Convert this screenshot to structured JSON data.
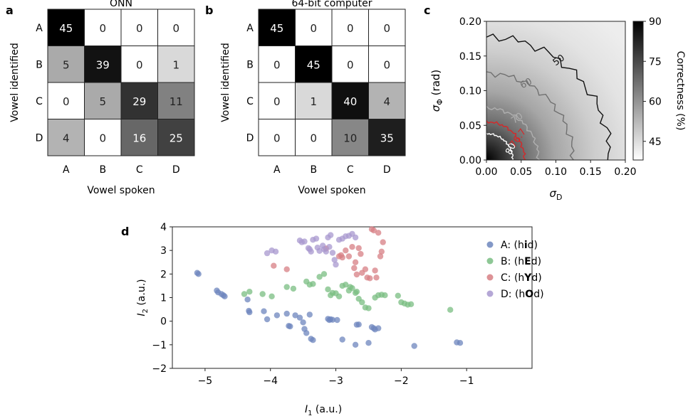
{
  "panels": {
    "a": "a",
    "b": "b",
    "c": "c",
    "d": "d"
  },
  "chart_data": [
    {
      "panel": "a",
      "type": "heatmap",
      "title": "ONN",
      "xlabel": "Vowel spoken",
      "ylabel": "Vowel identified",
      "x_categories": [
        "A",
        "B",
        "C",
        "D"
      ],
      "y_categories": [
        "A",
        "B",
        "C",
        "D"
      ],
      "max": 45,
      "values": [
        [
          45,
          0,
          0,
          0
        ],
        [
          5,
          39,
          0,
          1
        ],
        [
          0,
          5,
          29,
          11
        ],
        [
          4,
          0,
          16,
          25
        ]
      ]
    },
    {
      "panel": "b",
      "type": "heatmap",
      "title": "64-bit computer",
      "xlabel": "Vowel spoken",
      "ylabel": "Vowel identified",
      "x_categories": [
        "A",
        "B",
        "C",
        "D"
      ],
      "y_categories": [
        "A",
        "B",
        "C",
        "D"
      ],
      "max": 45,
      "values": [
        [
          45,
          0,
          0,
          0
        ],
        [
          0,
          45,
          0,
          0
        ],
        [
          0,
          1,
          40,
          4
        ],
        [
          0,
          0,
          10,
          35
        ]
      ]
    },
    {
      "panel": "c",
      "type": "heatmap",
      "xlabel": "σ_D",
      "ylabel": "σ_Φ (rad)",
      "xlim": [
        0,
        0.2
      ],
      "ylim": [
        0,
        0.2
      ],
      "xticks": [
        "0.00",
        "0.05",
        "0.10",
        "0.15",
        "0.20"
      ],
      "yticks": [
        "0.00",
        "0.05",
        "0.10",
        "0.15",
        "0.20"
      ],
      "colorbar": {
        "label": "Correctness (%)",
        "range": [
          38,
          90
        ],
        "ticks": [
          "45",
          "60",
          "75",
          "90"
        ]
      },
      "contours": [
        {
          "level": "80",
          "color": "#ffffff",
          "radius": 0.038
        },
        {
          "level": "76.7",
          "color": "#d62728",
          "radius": 0.055
        },
        {
          "level": "70",
          "color": "#b0b0b0",
          "radius": 0.075
        },
        {
          "level": "60",
          "color": "#707070",
          "radius": 0.125
        },
        {
          "level": "50",
          "color": "#111111",
          "radius": 0.178
        }
      ]
    },
    {
      "panel": "d",
      "type": "scatter",
      "xlabel": "I1 (a.u.)",
      "ylabel": "I2 (a.u.)",
      "xlim": [
        -5.5,
        0
      ],
      "ylim": [
        -2,
        4
      ],
      "xticks": [
        -5,
        -4,
        -3,
        -2,
        -1
      ],
      "yticks": [
        -2,
        -1,
        0,
        1,
        2,
        3,
        4
      ],
      "legend_position": "top-right",
      "series": [
        {
          "name": "A: (hid)",
          "label_pre": "A: (h",
          "label_bold": "i",
          "label_post": "d)",
          "color": "#6d86bd",
          "points": [
            [
              -5.12,
              2.05
            ],
            [
              -5.1,
              2.0
            ],
            [
              -4.82,
              1.3
            ],
            [
              -4.8,
              1.22
            ],
            [
              -4.75,
              1.15
            ],
            [
              -4.72,
              1.1
            ],
            [
              -4.7,
              1.05
            ],
            [
              -4.35,
              0.92
            ],
            [
              -4.33,
              0.44
            ],
            [
              -4.32,
              0.38
            ],
            [
              -4.1,
              0.42
            ],
            [
              -4.05,
              0.08
            ],
            [
              -3.9,
              0.25
            ],
            [
              -3.75,
              0.32
            ],
            [
              -3.72,
              -0.2
            ],
            [
              -3.7,
              -0.22
            ],
            [
              -3.62,
              0.25
            ],
            [
              -3.55,
              0.15
            ],
            [
              -3.5,
              -0.05
            ],
            [
              -3.48,
              -0.33
            ],
            [
              -3.45,
              -0.5
            ],
            [
              -3.4,
              0.28
            ],
            [
              -3.38,
              -0.75
            ],
            [
              -3.35,
              -0.8
            ],
            [
              -3.12,
              0.1
            ],
            [
              -3.1,
              0.05
            ],
            [
              -3.08,
              0.08
            ],
            [
              -3.05,
              0.06
            ],
            [
              -2.98,
              0.05
            ],
            [
              -2.9,
              -0.78
            ],
            [
              -2.68,
              -0.15
            ],
            [
              -2.65,
              -0.14
            ],
            [
              -2.7,
              -1.0
            ],
            [
              -2.5,
              -0.92
            ],
            [
              -2.45,
              -0.25
            ],
            [
              -2.42,
              -0.3
            ],
            [
              -2.4,
              -0.35
            ],
            [
              -2.35,
              -0.3
            ],
            [
              -1.8,
              -1.05
            ],
            [
              -1.15,
              -0.9
            ],
            [
              -1.1,
              -0.92
            ]
          ]
        },
        {
          "name": "B: (hEd)",
          "label_pre": "B: (h",
          "label_bold": "E",
          "label_post": "d)",
          "color": "#79bd82",
          "points": [
            [
              -4.4,
              1.15
            ],
            [
              -4.32,
              1.25
            ],
            [
              -4.12,
              1.15
            ],
            [
              -3.98,
              1.05
            ],
            [
              -3.75,
              1.45
            ],
            [
              -3.65,
              1.38
            ],
            [
              -3.45,
              1.68
            ],
            [
              -3.4,
              1.55
            ],
            [
              -3.35,
              1.58
            ],
            [
              -3.25,
              1.88
            ],
            [
              -3.18,
              2.0
            ],
            [
              -3.12,
              1.35
            ],
            [
              -3.08,
              1.1
            ],
            [
              -3.05,
              1.2
            ],
            [
              -3.0,
              1.18
            ],
            [
              -2.95,
              1.05
            ],
            [
              -2.9,
              1.5
            ],
            [
              -2.85,
              1.55
            ],
            [
              -2.8,
              1.3
            ],
            [
              -2.78,
              1.45
            ],
            [
              -2.75,
              1.4
            ],
            [
              -2.7,
              1.2
            ],
            [
              -2.68,
              1.25
            ],
            [
              -2.65,
              0.95
            ],
            [
              -2.6,
              0.8
            ],
            [
              -2.55,
              0.58
            ],
            [
              -2.5,
              0.55
            ],
            [
              -2.4,
              1.0
            ],
            [
              -2.35,
              1.1
            ],
            [
              -2.3,
              1.12
            ],
            [
              -2.25,
              1.1
            ],
            [
              -2.05,
              1.08
            ],
            [
              -2.0,
              0.8
            ],
            [
              -1.95,
              0.75
            ],
            [
              -1.9,
              0.7
            ],
            [
              -1.85,
              0.72
            ],
            [
              -1.25,
              0.48
            ]
          ]
        },
        {
          "name": "C: (hYd)",
          "label_pre": "C: (h",
          "label_bold": "Y",
          "label_post": "d)",
          "color": "#d77f84",
          "points": [
            [
              -3.95,
              2.35
            ],
            [
              -3.75,
              2.2
            ],
            [
              -3.15,
              3.08
            ],
            [
              -2.95,
              2.75
            ],
            [
              -2.92,
              2.8
            ],
            [
              -2.9,
              2.7
            ],
            [
              -2.85,
              3.0
            ],
            [
              -2.8,
              2.75
            ],
            [
              -2.75,
              3.15
            ],
            [
              -2.72,
              2.25
            ],
            [
              -2.7,
              2.5
            ],
            [
              -2.68,
              1.98
            ],
            [
              -2.65,
              3.1
            ],
            [
              -2.62,
              2.85
            ],
            [
              -2.6,
              2.05
            ],
            [
              -2.55,
              2.2
            ],
            [
              -2.52,
              1.85
            ],
            [
              -2.48,
              1.82
            ],
            [
              -2.45,
              3.9
            ],
            [
              -2.42,
              3.85
            ],
            [
              -2.4,
              2.15
            ],
            [
              -2.38,
              1.85
            ],
            [
              -2.35,
              3.75
            ],
            [
              -2.32,
              2.75
            ],
            [
              -2.3,
              2.95
            ],
            [
              -2.28,
              3.35
            ]
          ]
        },
        {
          "name": "D: (hOd)",
          "label_pre": "D: (h",
          "label_bold": "O",
          "label_post": "d)",
          "color": "#a898cf",
          "points": [
            [
              -4.05,
              2.88
            ],
            [
              -3.98,
              3.0
            ],
            [
              -3.92,
              2.95
            ],
            [
              -3.55,
              3.42
            ],
            [
              -3.52,
              3.35
            ],
            [
              -3.48,
              3.38
            ],
            [
              -3.42,
              3.1
            ],
            [
              -3.4,
              3.05
            ],
            [
              -3.38,
              2.95
            ],
            [
              -3.35,
              3.45
            ],
            [
              -3.3,
              3.5
            ],
            [
              -3.28,
              3.12
            ],
            [
              -3.25,
              2.98
            ],
            [
              -3.2,
              3.2
            ],
            [
              -3.18,
              3.05
            ],
            [
              -3.15,
              2.95
            ],
            [
              -3.12,
              3.55
            ],
            [
              -3.1,
              3.15
            ],
            [
              -3.08,
              3.65
            ],
            [
              -3.05,
              2.9
            ],
            [
              -3.02,
              2.6
            ],
            [
              -3.0,
              2.4
            ],
            [
              -2.95,
              3.45
            ],
            [
              -2.9,
              3.5
            ],
            [
              -2.85,
              3.6
            ],
            [
              -2.8,
              3.62
            ],
            [
              -2.75,
              3.7
            ],
            [
              -2.7,
              3.55
            ]
          ]
        }
      ]
    }
  ]
}
